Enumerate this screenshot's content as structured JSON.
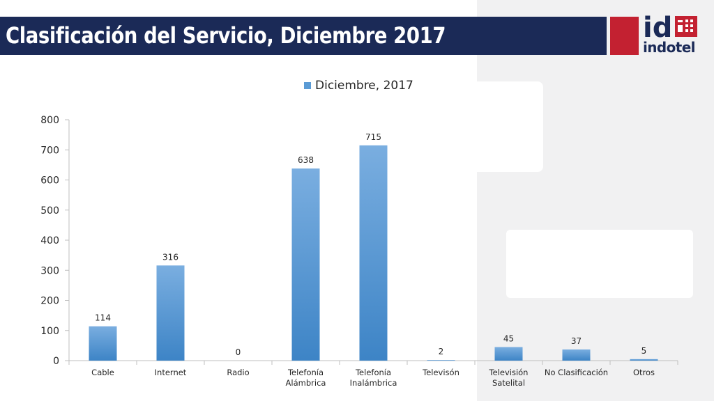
{
  "header": {
    "title": "Clasificación del Servicio, Diciembre 2017",
    "logo_letters": "id",
    "logo_name": "indotel",
    "brand_navy": "#1b2a57",
    "brand_red": "#c32131"
  },
  "chart_data": {
    "type": "bar",
    "title": "",
    "xlabel": "",
    "ylabel": "",
    "categories": [
      "Cable",
      "Internet",
      "Radio",
      "Telefonía Alámbrica",
      "Telefonía Inalámbrica",
      "Televisón",
      "Televisión Satelital",
      "No Clasificación",
      "Otros"
    ],
    "category_lines": [
      [
        "Cable"
      ],
      [
        "Internet"
      ],
      [
        "Radio"
      ],
      [
        "Telefonía",
        "Alámbrica"
      ],
      [
        "Telefonía",
        "Inalámbrica"
      ],
      [
        "Televisón"
      ],
      [
        "Televisión",
        "Satelital"
      ],
      [
        "No Clasificación"
      ],
      [
        "Otros"
      ]
    ],
    "series": [
      {
        "name": "Diciembre, 2017",
        "values": [
          114,
          316,
          0,
          638,
          715,
          2,
          45,
          37,
          5
        ]
      }
    ],
    "ylim": [
      0,
      800
    ],
    "yticks": [
      0,
      100,
      200,
      300,
      400,
      500,
      600,
      700,
      800
    ],
    "grid": false,
    "legend_position": "top-center",
    "bar_color": "#5b9bd5",
    "bar_color_light": "#7aaee0",
    "bar_color_dark": "#3d84c6"
  }
}
